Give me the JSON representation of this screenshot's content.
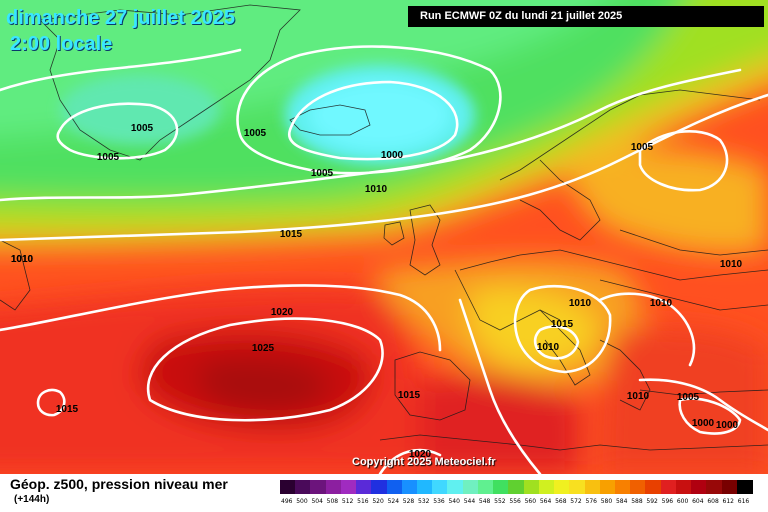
{
  "header": {
    "date_line": "dimanche 27 juillet 2025",
    "time_line": "2:00 locale",
    "run_info": "Run ECMWF 0Z du lundi 21 juillet 2025"
  },
  "map": {
    "copyright": "Copyright 2025 Meteociel.fr",
    "pressure_labels": [
      {
        "text": "1010"
      },
      {
        "text": "1005"
      },
      {
        "text": "1005"
      },
      {
        "text": "1005"
      },
      {
        "text": "1000"
      },
      {
        "text": "1005"
      },
      {
        "text": "1010"
      },
      {
        "text": "1015"
      },
      {
        "text": "1010"
      },
      {
        "text": "1020"
      },
      {
        "text": "1025"
      },
      {
        "text": "1015"
      },
      {
        "text": "1015"
      },
      {
        "text": "1020"
      },
      {
        "text": "1005"
      },
      {
        "text": "1010"
      },
      {
        "text": "1010"
      },
      {
        "text": "1015"
      },
      {
        "text": "1010"
      },
      {
        "text": "1010"
      },
      {
        "text": "1010"
      },
      {
        "text": "1005"
      },
      {
        "text": "1000"
      },
      {
        "text": "1000"
      }
    ]
  },
  "footer": {
    "title": "Géop. z500, pression niveau mer",
    "subtitle": "(+144h)"
  },
  "legend": {
    "values": [
      "496",
      "500",
      "504",
      "508",
      "512",
      "516",
      "520",
      "524",
      "528",
      "532",
      "536",
      "540",
      "544",
      "548",
      "552",
      "556",
      "560",
      "564",
      "568",
      "572",
      "576",
      "580",
      "584",
      "588",
      "592",
      "596",
      "600",
      "604",
      "608",
      "612",
      "616"
    ],
    "colors": [
      "#2a0030",
      "#4a0a5a",
      "#6c147c",
      "#8c1fa0",
      "#a02bc0",
      "#5a2ad8",
      "#2030e0",
      "#1060f0",
      "#1890ff",
      "#20b8ff",
      "#40d8ff",
      "#60f0f0",
      "#70f0c0",
      "#60f090",
      "#40e060",
      "#60d030",
      "#a0e020",
      "#d0f020",
      "#f0f020",
      "#f8e020",
      "#f8c010",
      "#f8a000",
      "#f88000",
      "#f06000",
      "#e84000",
      "#e02020",
      "#c81010",
      "#b00010",
      "#980808",
      "#780000",
      "#000000"
    ]
  }
}
